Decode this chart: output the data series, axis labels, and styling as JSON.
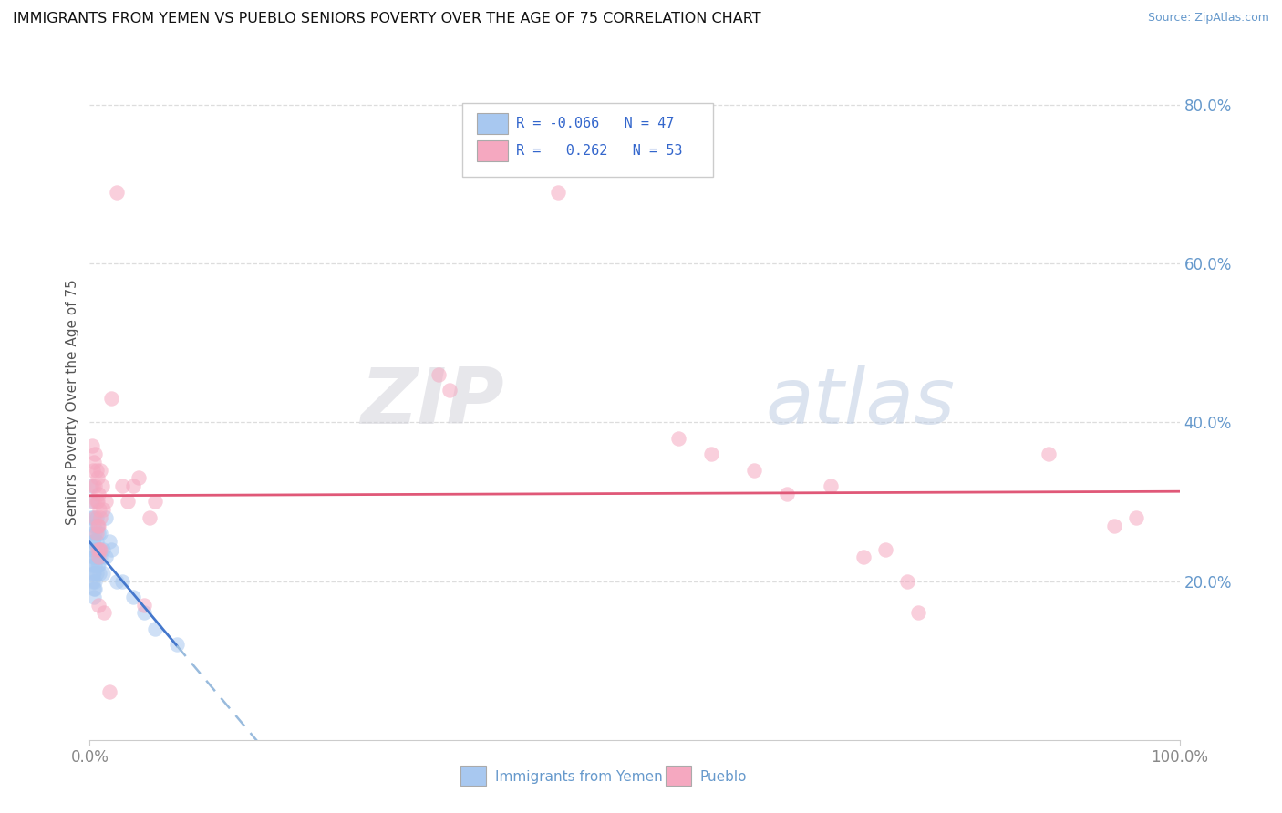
{
  "title": "IMMIGRANTS FROM YEMEN VS PUEBLO SENIORS POVERTY OVER THE AGE OF 75 CORRELATION CHART",
  "source": "Source: ZipAtlas.com",
  "ylabel": "Seniors Poverty Over the Age of 75",
  "xlim": [
    0,
    1.0
  ],
  "ylim": [
    0,
    0.85
  ],
  "xtick_vals": [
    0.0,
    1.0
  ],
  "xtick_labels": [
    "0.0%",
    "100.0%"
  ],
  "yticks_right": [
    0.2,
    0.4,
    0.6,
    0.8
  ],
  "ytick_labels_right": [
    "20.0%",
    "40.0%",
    "60.0%",
    "80.0%"
  ],
  "blue_color": "#a8c8f0",
  "pink_color": "#f5a8c0",
  "blue_line_color": "#4477cc",
  "pink_line_color": "#e05878",
  "blue_dashed_color": "#99bbdd",
  "watermark_text": "ZIPatlas",
  "background_color": "#ffffff",
  "grid_color": "#dddddd",
  "blue_scatter": [
    [
      0.001,
      0.32
    ],
    [
      0.001,
      0.28
    ],
    [
      0.002,
      0.3
    ],
    [
      0.002,
      0.26
    ],
    [
      0.002,
      0.24
    ],
    [
      0.002,
      0.22
    ],
    [
      0.003,
      0.28
    ],
    [
      0.003,
      0.25
    ],
    [
      0.003,
      0.23
    ],
    [
      0.003,
      0.21
    ],
    [
      0.003,
      0.2
    ],
    [
      0.004,
      0.27
    ],
    [
      0.004,
      0.25
    ],
    [
      0.004,
      0.23
    ],
    [
      0.004,
      0.21
    ],
    [
      0.004,
      0.19
    ],
    [
      0.004,
      0.18
    ],
    [
      0.005,
      0.26
    ],
    [
      0.005,
      0.24
    ],
    [
      0.005,
      0.22
    ],
    [
      0.005,
      0.2
    ],
    [
      0.005,
      0.19
    ],
    [
      0.006,
      0.28
    ],
    [
      0.006,
      0.25
    ],
    [
      0.006,
      0.23
    ],
    [
      0.006,
      0.21
    ],
    [
      0.007,
      0.27
    ],
    [
      0.007,
      0.24
    ],
    [
      0.007,
      0.22
    ],
    [
      0.008,
      0.26
    ],
    [
      0.008,
      0.22
    ],
    [
      0.009,
      0.24
    ],
    [
      0.009,
      0.21
    ],
    [
      0.01,
      0.26
    ],
    [
      0.01,
      0.23
    ],
    [
      0.012,
      0.24
    ],
    [
      0.012,
      0.21
    ],
    [
      0.015,
      0.28
    ],
    [
      0.015,
      0.23
    ],
    [
      0.018,
      0.25
    ],
    [
      0.02,
      0.24
    ],
    [
      0.025,
      0.2
    ],
    [
      0.03,
      0.2
    ],
    [
      0.04,
      0.18
    ],
    [
      0.05,
      0.16
    ],
    [
      0.06,
      0.14
    ],
    [
      0.08,
      0.12
    ]
  ],
  "pink_scatter": [
    [
      0.002,
      0.37
    ],
    [
      0.003,
      0.34
    ],
    [
      0.003,
      0.32
    ],
    [
      0.004,
      0.35
    ],
    [
      0.004,
      0.3
    ],
    [
      0.005,
      0.36
    ],
    [
      0.005,
      0.32
    ],
    [
      0.005,
      0.28
    ],
    [
      0.006,
      0.34
    ],
    [
      0.006,
      0.3
    ],
    [
      0.006,
      0.26
    ],
    [
      0.007,
      0.33
    ],
    [
      0.007,
      0.3
    ],
    [
      0.007,
      0.27
    ],
    [
      0.007,
      0.24
    ],
    [
      0.008,
      0.31
    ],
    [
      0.008,
      0.27
    ],
    [
      0.008,
      0.23
    ],
    [
      0.008,
      0.17
    ],
    [
      0.009,
      0.29
    ],
    [
      0.009,
      0.24
    ],
    [
      0.01,
      0.34
    ],
    [
      0.01,
      0.28
    ],
    [
      0.01,
      0.24
    ],
    [
      0.011,
      0.32
    ],
    [
      0.012,
      0.29
    ],
    [
      0.013,
      0.16
    ],
    [
      0.015,
      0.3
    ],
    [
      0.018,
      0.06
    ],
    [
      0.02,
      0.43
    ],
    [
      0.025,
      0.69
    ],
    [
      0.03,
      0.32
    ],
    [
      0.035,
      0.3
    ],
    [
      0.04,
      0.32
    ],
    [
      0.045,
      0.33
    ],
    [
      0.05,
      0.17
    ],
    [
      0.055,
      0.28
    ],
    [
      0.06,
      0.3
    ],
    [
      0.32,
      0.46
    ],
    [
      0.33,
      0.44
    ],
    [
      0.43,
      0.69
    ],
    [
      0.54,
      0.38
    ],
    [
      0.57,
      0.36
    ],
    [
      0.61,
      0.34
    ],
    [
      0.64,
      0.31
    ],
    [
      0.68,
      0.32
    ],
    [
      0.71,
      0.23
    ],
    [
      0.73,
      0.24
    ],
    [
      0.75,
      0.2
    ],
    [
      0.76,
      0.16
    ],
    [
      0.88,
      0.36
    ],
    [
      0.94,
      0.27
    ],
    [
      0.96,
      0.28
    ]
  ]
}
